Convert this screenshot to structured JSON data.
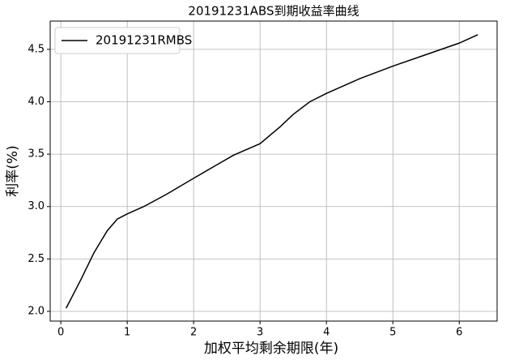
{
  "chart_data": {
    "type": "line",
    "title": "20191231ABS到期收益率曲线",
    "x_label": "加权平均剩余期限(年)",
    "y_label": "利率(%)",
    "x": [
      0.08,
      0.3,
      0.5,
      0.7,
      0.85,
      1.0,
      1.25,
      1.6,
      2.0,
      2.3,
      2.6,
      3.0,
      3.3,
      3.5,
      3.75,
      4.0,
      4.5,
      5.0,
      5.5,
      6.0,
      6.28
    ],
    "series": [
      {
        "name": "20191231RMBS",
        "color": "#000000",
        "values": [
          2.03,
          2.3,
          2.56,
          2.77,
          2.88,
          2.93,
          3.0,
          3.12,
          3.27,
          3.38,
          3.49,
          3.6,
          3.76,
          3.88,
          4.0,
          4.08,
          4.22,
          4.34,
          4.45,
          4.56,
          4.64
        ]
      }
    ],
    "xlim": [
      -0.16,
      6.57
    ],
    "ylim": [
      1.907,
      4.77
    ],
    "xticks": [
      0,
      1,
      2,
      3,
      4,
      5,
      6
    ],
    "yticks": [
      {
        "value": 2,
        "label": "2.0"
      },
      2.5,
      {
        "value": 3,
        "label": "3.0"
      },
      3.5,
      {
        "value": 4,
        "label": "4.0"
      },
      4.5
    ],
    "grid": true,
    "legend": "upper left"
  }
}
